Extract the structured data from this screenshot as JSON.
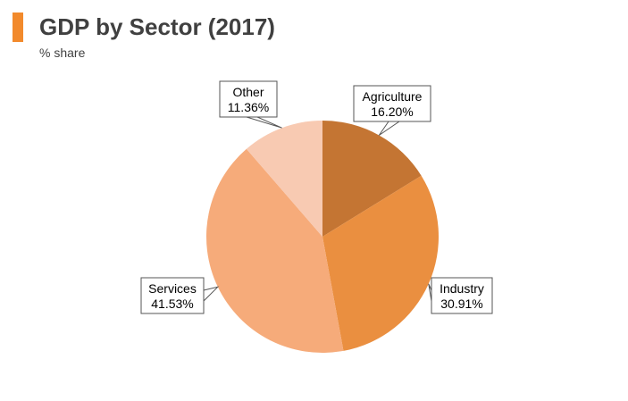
{
  "header": {
    "title": "GDP by Sector (2017)",
    "subtitle": "% share",
    "accent_color": "#f28a2c"
  },
  "chart_data": {
    "type": "pie",
    "title": "GDP by Sector (2017)",
    "subtitle": "% share",
    "unit": "%",
    "start_angle_deg": 0,
    "direction": "clockwise",
    "legend": "none",
    "slices": [
      {
        "label": "Agriculture",
        "value": 16.2,
        "value_text": "16.20%",
        "color": "#c47533"
      },
      {
        "label": "Industry",
        "value": 30.91,
        "value_text": "30.91%",
        "color": "#ea8f40"
      },
      {
        "label": "Services",
        "value": 41.53,
        "value_text": "41.53%",
        "color": "#f6ab7a"
      },
      {
        "label": "Other",
        "value": 11.36,
        "value_text": "11.36%",
        "color": "#f8cab2"
      }
    ]
  }
}
